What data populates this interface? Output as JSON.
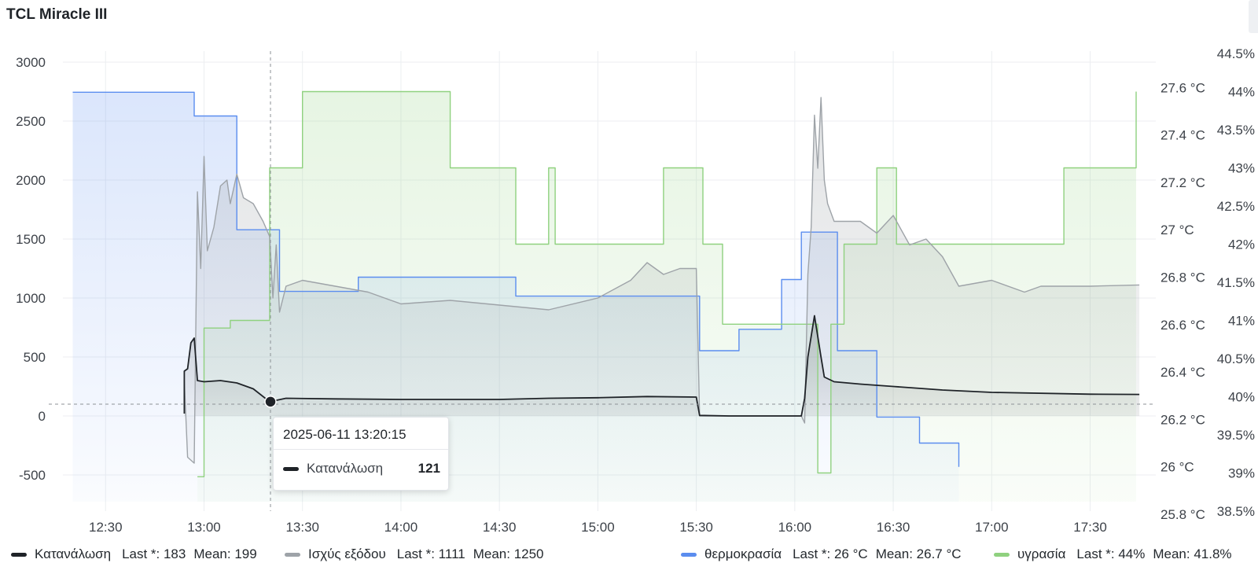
{
  "panel_title": "TCL Miracle III",
  "tooltip": {
    "time": "2025-06-11 13:20:15",
    "series": "Κατανάλωση",
    "value": "121"
  },
  "legend": [
    {
      "name": "Κατανάλωση",
      "last": "Last *: 183",
      "mean": "Mean: 199",
      "color": "#1f2328"
    },
    {
      "name": "Ισχύς εξόδου",
      "last": "Last *: 1111",
      "mean": "Mean: 1250",
      "color": "#9ea3a8"
    },
    {
      "name": "θερμοκρασία",
      "last": "Last *: 26 °C",
      "mean": "Mean: 26.7 °C",
      "color": "#5b8def"
    },
    {
      "name": "υγρασία",
      "last": "Last *: 44%",
      "mean": "Mean: 41.8%",
      "color": "#8fd17f"
    }
  ],
  "chart_data": {
    "type": "line",
    "x_ticks": [
      "12:30",
      "13:00",
      "13:30",
      "14:00",
      "14:30",
      "15:00",
      "15:30",
      "16:00",
      "16:30",
      "17:00",
      "17:30"
    ],
    "y_left_ticks": [
      "3000",
      "2500",
      "2000",
      "1500",
      "1000",
      "500",
      "0",
      "-500"
    ],
    "y_temp_ticks": [
      "27.6 °C",
      "27.4 °C",
      "27.2 °C",
      "27 °C",
      "26.8 °C",
      "26.6 °C",
      "26.4 °C",
      "26.2 °C",
      "26 °C",
      "25.8 °C"
    ],
    "y_hum_ticks": [
      "44.5%",
      "44%",
      "43.5%",
      "43%",
      "42.5%",
      "42%",
      "41.5%",
      "41%",
      "40.5%",
      "40%",
      "39.5%",
      "39%",
      "38.5%"
    ],
    "threshold": 100,
    "cursor_time": "13:20:15",
    "series": [
      {
        "name": "Κατανάλωση",
        "axis": "left",
        "color": "#1f2328",
        "points": [
          [
            "12:54",
            20
          ],
          [
            "12:54",
            380
          ],
          [
            "12:55",
            400
          ],
          [
            "12:56",
            620
          ],
          [
            "12:57",
            660
          ],
          [
            "12:58",
            300
          ],
          [
            "13:00",
            290
          ],
          [
            "13:05",
            300
          ],
          [
            "13:10",
            280
          ],
          [
            "13:15",
            230
          ],
          [
            "13:20",
            121
          ],
          [
            "13:25",
            150
          ],
          [
            "13:40",
            145
          ],
          [
            "14:00",
            140
          ],
          [
            "14:30",
            140
          ],
          [
            "14:45",
            150
          ],
          [
            "15:00",
            155
          ],
          [
            "15:15",
            165
          ],
          [
            "15:30",
            160
          ],
          [
            "15:31",
            5
          ],
          [
            "15:40",
            0
          ],
          [
            "16:02",
            0
          ],
          [
            "16:03",
            150
          ],
          [
            "16:04",
            500
          ],
          [
            "16:06",
            850
          ],
          [
            "16:08",
            500
          ],
          [
            "16:09",
            330
          ],
          [
            "16:12",
            290
          ],
          [
            "16:20",
            270
          ],
          [
            "16:30",
            250
          ],
          [
            "16:45",
            220
          ],
          [
            "17:00",
            200
          ],
          [
            "17:30",
            185
          ],
          [
            "17:45",
            183
          ]
        ]
      },
      {
        "name": "Ισχύς εξόδου",
        "axis": "left",
        "color": "#9ea3a8",
        "points": [
          [
            "12:54",
            300
          ],
          [
            "12:55",
            -350
          ],
          [
            "12:57",
            -400
          ],
          [
            "12:58",
            1900
          ],
          [
            "12:59",
            1250
          ],
          [
            "13:00",
            2200
          ],
          [
            "13:01",
            1400
          ],
          [
            "13:03",
            1600
          ],
          [
            "13:05",
            1950
          ],
          [
            "13:07",
            2000
          ],
          [
            "13:08",
            1800
          ],
          [
            "13:10",
            2050
          ],
          [
            "13:12",
            1850
          ],
          [
            "13:15",
            1800
          ],
          [
            "13:18",
            1650
          ],
          [
            "13:20",
            1520
          ],
          [
            "13:21",
            1000
          ],
          [
            "13:22",
            1450
          ],
          [
            "13:23",
            880
          ],
          [
            "13:25",
            1100
          ],
          [
            "13:30",
            1150
          ],
          [
            "13:40",
            1100
          ],
          [
            "13:50",
            1050
          ],
          [
            "14:00",
            950
          ],
          [
            "14:15",
            980
          ],
          [
            "14:30",
            940
          ],
          [
            "14:45",
            900
          ],
          [
            "15:00",
            1000
          ],
          [
            "15:10",
            1150
          ],
          [
            "15:15",
            1300
          ],
          [
            "15:20",
            1200
          ],
          [
            "15:25",
            1250
          ],
          [
            "15:30",
            1250
          ],
          [
            "15:31",
            0
          ],
          [
            "15:40",
            0
          ],
          [
            "16:02",
            0
          ],
          [
            "16:03",
            -60
          ],
          [
            "16:04",
            1200
          ],
          [
            "16:05",
            1600
          ],
          [
            "16:06",
            2550
          ],
          [
            "16:07",
            2100
          ],
          [
            "16:08",
            2700
          ],
          [
            "16:09",
            2000
          ],
          [
            "16:10",
            1800
          ],
          [
            "16:12",
            1650
          ],
          [
            "16:20",
            1650
          ],
          [
            "16:25",
            1550
          ],
          [
            "16:30",
            1700
          ],
          [
            "16:35",
            1450
          ],
          [
            "16:40",
            1500
          ],
          [
            "16:45",
            1350
          ],
          [
            "16:50",
            1100
          ],
          [
            "17:00",
            1150
          ],
          [
            "17:10",
            1050
          ],
          [
            "17:15",
            1100
          ],
          [
            "17:30",
            1100
          ],
          [
            "17:45",
            1111
          ]
        ]
      },
      {
        "name": "θερμοκρασία",
        "axis": "temp",
        "color": "#5b8def",
        "steps": [
          [
            "12:20",
            27.58
          ],
          [
            "12:57",
            27.48
          ],
          [
            "13:10",
            27.0
          ],
          [
            "13:23",
            26.74
          ],
          [
            "13:47",
            26.8
          ],
          [
            "14:35",
            26.72
          ],
          [
            "15:31",
            26.49
          ],
          [
            "15:43",
            26.58
          ],
          [
            "15:56",
            26.79
          ],
          [
            "16:02",
            26.99
          ],
          [
            "16:13",
            26.49
          ],
          [
            "16:25",
            26.21
          ],
          [
            "16:38",
            26.1
          ],
          [
            "16:50",
            26.0
          ]
        ]
      },
      {
        "name": "υγρασία",
        "axis": "hum",
        "color": "#8fd17f",
        "steps": [
          [
            "12:58",
            38.95
          ],
          [
            "13:00",
            40.9
          ],
          [
            "13:08",
            41.0
          ],
          [
            "13:20",
            43.0
          ],
          [
            "13:30",
            44.0
          ],
          [
            "14:15",
            43.0
          ],
          [
            "14:35",
            42.0
          ],
          [
            "14:45",
            43.0
          ],
          [
            "14:47",
            42.0
          ],
          [
            "15:20",
            43.0
          ],
          [
            "15:32",
            42.0
          ],
          [
            "15:38",
            40.95
          ],
          [
            "16:07",
            39.0
          ],
          [
            "16:11",
            40.95
          ],
          [
            "16:15",
            42.0
          ],
          [
            "16:25",
            43.0
          ],
          [
            "16:31",
            42.0
          ],
          [
            "17:22",
            43.0
          ],
          [
            "17:44",
            44.0
          ]
        ]
      }
    ]
  }
}
